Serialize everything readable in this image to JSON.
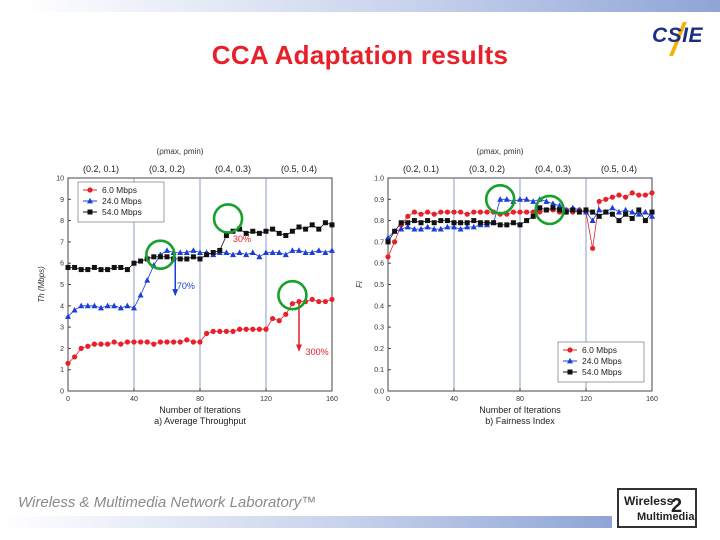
{
  "slide": {
    "title": "CCA Adaptation results",
    "logo_text": "CSIE",
    "footer": "Wireless & Multimedia Network Laboratory™",
    "lab_logo_line1": "Wireless",
    "lab_logo_line2": "Multimedia",
    "lab_logo_mark": "2"
  },
  "colors": {
    "title": "#e8202a",
    "series_6": "#e8202a",
    "series_24": "#1a3ed8",
    "series_54": "#111111",
    "circle": "#17a02a",
    "annotation": "#e8202a",
    "annotation_blue": "#1a3ed8"
  },
  "chart_data": [
    {
      "type": "scatter",
      "caption": "a) Average Throughput",
      "xlabel": "Number of Iterations",
      "ylabel": "Th (Mbps)",
      "xlim": [
        0,
        160
      ],
      "ylim": [
        0,
        10
      ],
      "xticks": [
        0,
        40,
        80,
        120,
        160
      ],
      "yticks": [
        0,
        1,
        2,
        3,
        4,
        5,
        6,
        7,
        8,
        9,
        10
      ],
      "phase_header": "(ρmax, ρmin)",
      "phases": [
        {
          "label": "(0.2, 0.1)",
          "start": 0,
          "end": 40
        },
        {
          "label": "(0.3, 0.2)",
          "start": 40,
          "end": 80
        },
        {
          "label": "(0.4, 0.3)",
          "start": 80,
          "end": 120
        },
        {
          "label": "(0.5, 0.4)",
          "start": 120,
          "end": 160
        }
      ],
      "legend": [
        "6.0 Mbps",
        "24.0 Mbps",
        "54.0 Mbps"
      ],
      "annotations": [
        {
          "text": "30%",
          "x": 100,
          "y": 7.0,
          "color": "#e8202a"
        },
        {
          "text": "70%",
          "x": 66,
          "y": 4.8,
          "color": "#1a3ed8"
        },
        {
          "text": "300%",
          "x": 144,
          "y": 1.7,
          "color": "#e8202a"
        }
      ],
      "circles": [
        {
          "x": 56,
          "y": 6.4
        },
        {
          "x": 97,
          "y": 8.1
        },
        {
          "x": 136,
          "y": 4.5
        }
      ],
      "arrows": [
        {
          "x": 65,
          "y_from": 6.3,
          "y_to": 4.5,
          "color": "#1a3ed8"
        },
        {
          "x": 140,
          "y_from": 4.2,
          "y_to": 1.9,
          "color": "#e8202a"
        }
      ],
      "series": [
        {
          "name": "6.0 Mbps",
          "color": "#e8202a",
          "marker": "circle",
          "x": [
            0,
            4,
            8,
            12,
            16,
            20,
            24,
            28,
            32,
            36,
            40,
            44,
            48,
            52,
            56,
            60,
            64,
            68,
            72,
            76,
            80,
            84,
            88,
            92,
            96,
            100,
            104,
            108,
            112,
            116,
            120,
            124,
            128,
            132,
            136,
            140,
            144,
            148,
            152,
            156,
            160
          ],
          "values": [
            1.3,
            1.6,
            2.0,
            2.1,
            2.2,
            2.2,
            2.2,
            2.3,
            2.2,
            2.3,
            2.3,
            2.3,
            2.3,
            2.2,
            2.3,
            2.3,
            2.3,
            2.3,
            2.4,
            2.3,
            2.3,
            2.7,
            2.8,
            2.8,
            2.8,
            2.8,
            2.9,
            2.9,
            2.9,
            2.9,
            2.9,
            3.4,
            3.3,
            3.6,
            4.1,
            4.2,
            4.2,
            4.3,
            4.2,
            4.2,
            4.3
          ]
        },
        {
          "name": "24.0 Mbps",
          "color": "#1a3ed8",
          "marker": "triangle",
          "x": [
            0,
            4,
            8,
            12,
            16,
            20,
            24,
            28,
            32,
            36,
            40,
            44,
            48,
            52,
            56,
            60,
            64,
            68,
            72,
            76,
            80,
            84,
            88,
            92,
            96,
            100,
            104,
            108,
            112,
            116,
            120,
            124,
            128,
            132,
            136,
            140,
            144,
            148,
            152,
            156,
            160
          ],
          "values": [
            3.5,
            3.8,
            4.0,
            4.0,
            4.0,
            3.9,
            4.0,
            4.0,
            3.9,
            4.0,
            3.9,
            4.5,
            5.2,
            5.9,
            6.4,
            6.6,
            6.5,
            6.5,
            6.5,
            6.6,
            6.5,
            6.5,
            6.4,
            6.5,
            6.5,
            6.4,
            6.5,
            6.4,
            6.5,
            6.3,
            6.5,
            6.5,
            6.5,
            6.4,
            6.6,
            6.6,
            6.5,
            6.5,
            6.6,
            6.5,
            6.6
          ]
        },
        {
          "name": "54.0 Mbps",
          "color": "#111111",
          "marker": "square",
          "x": [
            0,
            4,
            8,
            12,
            16,
            20,
            24,
            28,
            32,
            36,
            40,
            44,
            48,
            52,
            56,
            60,
            64,
            68,
            72,
            76,
            80,
            84,
            88,
            92,
            96,
            100,
            104,
            108,
            112,
            116,
            120,
            124,
            128,
            132,
            136,
            140,
            144,
            148,
            152,
            156,
            160
          ],
          "values": [
            5.8,
            5.8,
            5.7,
            5.7,
            5.8,
            5.7,
            5.7,
            5.8,
            5.8,
            5.7,
            6.0,
            6.1,
            6.2,
            6.3,
            6.3,
            6.3,
            6.2,
            6.2,
            6.2,
            6.3,
            6.2,
            6.4,
            6.5,
            6.6,
            7.3,
            7.5,
            7.6,
            7.4,
            7.5,
            7.4,
            7.5,
            7.6,
            7.4,
            7.3,
            7.5,
            7.7,
            7.6,
            7.8,
            7.6,
            7.9,
            7.8
          ]
        }
      ]
    },
    {
      "type": "scatter",
      "caption": "b) Fairness Index",
      "xlabel": "Number of Iterations",
      "ylabel": "Fi",
      "xlim": [
        0,
        160
      ],
      "ylim": [
        0,
        1.0
      ],
      "xticks": [
        0,
        40,
        80,
        120,
        160
      ],
      "yticks": [
        0.0,
        0.1,
        0.2,
        0.3,
        0.4,
        0.5,
        0.6,
        0.7,
        0.8,
        0.9,
        1.0
      ],
      "phase_header": "(ρmax, ρmin)",
      "phases": [
        {
          "label": "(0.2, 0.1)",
          "start": 0,
          "end": 40
        },
        {
          "label": "(0.3, 0.2)",
          "start": 40,
          "end": 80
        },
        {
          "label": "(0.4, 0.3)",
          "start": 80,
          "end": 120
        },
        {
          "label": "(0.5, 0.4)",
          "start": 120,
          "end": 160
        }
      ],
      "legend": [
        "6.0 Mbps",
        "24.0 Mbps",
        "54.0 Mbps"
      ],
      "annotations": [],
      "circles": [
        {
          "x": 68,
          "y": 0.9
        },
        {
          "x": 98,
          "y": 0.85
        }
      ],
      "arrows": [],
      "series": [
        {
          "name": "6.0 Mbps",
          "color": "#e8202a",
          "marker": "circle",
          "x": [
            0,
            4,
            8,
            12,
            16,
            20,
            24,
            28,
            32,
            36,
            40,
            44,
            48,
            52,
            56,
            60,
            64,
            68,
            72,
            76,
            80,
            84,
            88,
            92,
            96,
            100,
            104,
            108,
            112,
            116,
            120,
            124,
            128,
            132,
            136,
            140,
            144,
            148,
            152,
            156,
            160
          ],
          "values": [
            0.63,
            0.7,
            0.78,
            0.82,
            0.84,
            0.83,
            0.84,
            0.83,
            0.84,
            0.84,
            0.84,
            0.84,
            0.83,
            0.84,
            0.84,
            0.84,
            0.84,
            0.83,
            0.83,
            0.84,
            0.84,
            0.84,
            0.84,
            0.84,
            0.85,
            0.85,
            0.84,
            0.85,
            0.84,
            0.85,
            0.84,
            0.67,
            0.89,
            0.9,
            0.91,
            0.92,
            0.91,
            0.93,
            0.92,
            0.92,
            0.93
          ]
        },
        {
          "name": "24.0 Mbps",
          "color": "#1a3ed8",
          "marker": "triangle",
          "x": [
            0,
            4,
            8,
            12,
            16,
            20,
            24,
            28,
            32,
            36,
            40,
            44,
            48,
            52,
            56,
            60,
            64,
            68,
            72,
            76,
            80,
            84,
            88,
            92,
            96,
            100,
            104,
            108,
            112,
            116,
            120,
            124,
            128,
            132,
            136,
            140,
            144,
            148,
            152,
            156,
            160
          ],
          "values": [
            0.72,
            0.75,
            0.76,
            0.77,
            0.76,
            0.76,
            0.77,
            0.76,
            0.76,
            0.77,
            0.77,
            0.76,
            0.77,
            0.77,
            0.78,
            0.78,
            0.79,
            0.9,
            0.9,
            0.89,
            0.9,
            0.9,
            0.89,
            0.9,
            0.89,
            0.88,
            0.87,
            0.85,
            0.86,
            0.85,
            0.84,
            0.8,
            0.85,
            0.84,
            0.86,
            0.84,
            0.85,
            0.84,
            0.83,
            0.84,
            0.82
          ]
        },
        {
          "name": "54.0 Mbps",
          "color": "#111111",
          "marker": "square",
          "x": [
            0,
            4,
            8,
            12,
            16,
            20,
            24,
            28,
            32,
            36,
            40,
            44,
            48,
            52,
            56,
            60,
            64,
            68,
            72,
            76,
            80,
            84,
            88,
            92,
            96,
            100,
            104,
            108,
            112,
            116,
            120,
            124,
            128,
            132,
            136,
            140,
            144,
            148,
            152,
            156,
            160
          ],
          "values": [
            0.7,
            0.75,
            0.79,
            0.79,
            0.8,
            0.79,
            0.8,
            0.79,
            0.8,
            0.8,
            0.79,
            0.79,
            0.79,
            0.8,
            0.79,
            0.79,
            0.79,
            0.78,
            0.78,
            0.79,
            0.78,
            0.8,
            0.82,
            0.86,
            0.85,
            0.86,
            0.85,
            0.84,
            0.85,
            0.84,
            0.85,
            0.84,
            0.82,
            0.84,
            0.83,
            0.8,
            0.83,
            0.81,
            0.85,
            0.8,
            0.84
          ]
        }
      ]
    }
  ]
}
